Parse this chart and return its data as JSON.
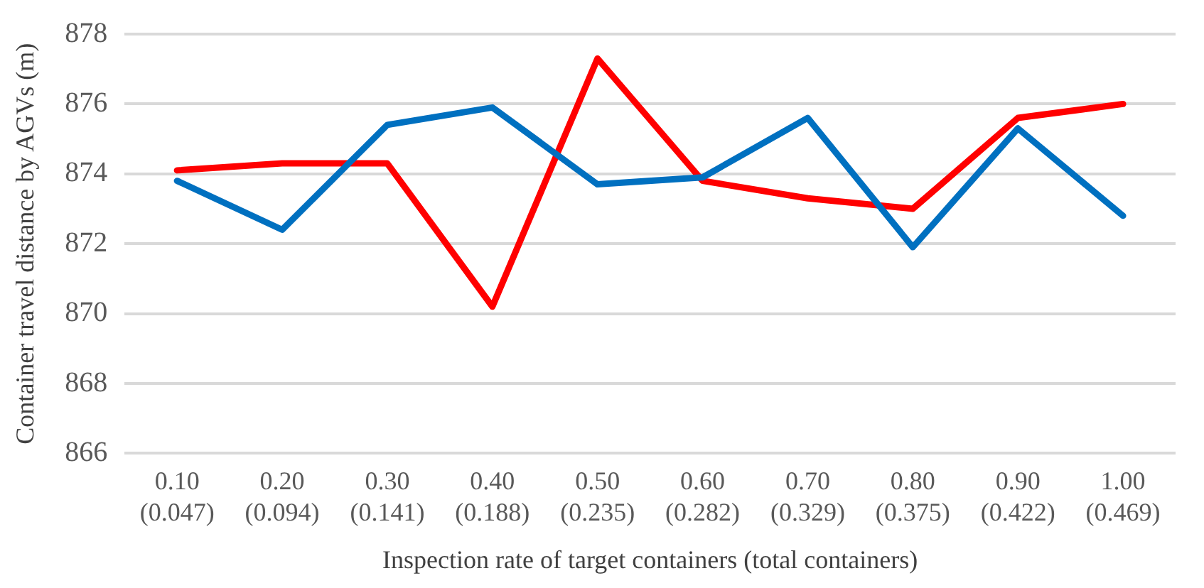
{
  "chart_data": {
    "type": "line",
    "xlabel": "Inspection rate of target containers (total containers)",
    "ylabel": "Container travel distance by AGVs (m)",
    "categories": [
      "0.10 (0.047)",
      "0.20 (0.094)",
      "0.30 (0.141)",
      "0.40 (0.188)",
      "0.50 (0.235)",
      "0.60 (0.282)",
      "0.70 (0.329)",
      "0.80 (0.375)",
      "0.90 (0.422)",
      "1.00 (0.469)"
    ],
    "series": [
      {
        "color": "#0070c0",
        "values": [
          873.8,
          872.4,
          875.4,
          875.9,
          873.7,
          873.9,
          875.6,
          871.9,
          875.3,
          872.8
        ]
      },
      {
        "color": "#ff0000",
        "values": [
          874.1,
          874.3,
          874.3,
          870.2,
          877.3,
          873.8,
          873.3,
          873.0,
          875.6,
          876.0
        ]
      }
    ],
    "ylim": [
      866,
      878
    ],
    "yticks": [
      866,
      868,
      870,
      872,
      874,
      876,
      878
    ],
    "grid": "y",
    "legend": false,
    "marker": "none",
    "line_style": "solid"
  }
}
